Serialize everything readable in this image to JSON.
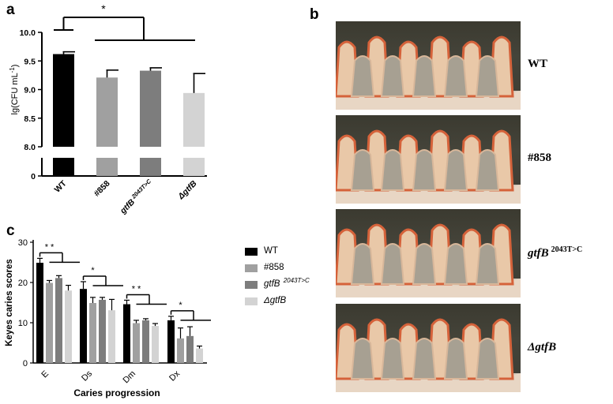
{
  "panels": {
    "a": "a",
    "b": "b",
    "c": "c"
  },
  "chart_data": [
    {
      "type": "bar",
      "panel": "a",
      "ylabel_main": "lg(CFU mL",
      "ylabel_sup": "-1",
      "ylabel_close": ")",
      "yticks": [
        "10.0",
        "9.5",
        "9.0",
        "8.5",
        "8.0",
        "0"
      ],
      "ylim": [
        8.0,
        10.0
      ],
      "axis_break": true,
      "categories": [
        {
          "main": "WT",
          "sup": ""
        },
        {
          "main": "#858",
          "sup": ""
        },
        {
          "main": "gtfB",
          "sup": " 2043T>C"
        },
        {
          "main": "ΔgtfB",
          "sup": ""
        }
      ],
      "values": [
        9.62,
        9.21,
        9.33,
        8.94
      ],
      "errors": [
        0.04,
        0.13,
        0.05,
        0.34
      ],
      "colors": [
        "#000000",
        "#a0a0a0",
        "#7d7d7d",
        "#d3d3d3"
      ],
      "significance": "*"
    },
    {
      "type": "bar",
      "panel": "c",
      "ylabel": "Keyes caries scores",
      "xlabel": "Caries progression",
      "yticks": [
        "0",
        "10",
        "20",
        "30"
      ],
      "ylim": [
        0,
        30
      ],
      "categories": [
        "E",
        "Ds",
        "Dm",
        "Dx"
      ],
      "series": [
        {
          "name": "WT",
          "values": [
            24.9,
            18.4,
            14.6,
            10.6
          ],
          "errors": [
            1.1,
            1.8,
            1.0,
            1.0
          ],
          "color": "#000000"
        },
        {
          "name": "#858",
          "values": [
            19.9,
            14.9,
            9.9,
            6.1
          ],
          "errors": [
            0.6,
            1.4,
            0.7,
            2.6
          ],
          "color": "#a0a0a0"
        },
        {
          "name": "gtfB",
          "name_sup": " 2043T>C",
          "values": [
            21.1,
            15.7,
            10.6,
            6.7
          ],
          "errors": [
            0.6,
            0.6,
            0.4,
            2.3
          ],
          "color": "#7d7d7d"
        },
        {
          "name": "ΔgtfB",
          "values": [
            18.0,
            13.1,
            9.2,
            3.6
          ],
          "errors": [
            1.3,
            2.7,
            0.6,
            0.6
          ],
          "color": "#d3d3d3"
        }
      ],
      "significance": [
        "* *",
        "*",
        "* *",
        "*"
      ]
    }
  ],
  "photos": [
    {
      "label": "WT",
      "sup": ""
    },
    {
      "label": "#858",
      "sup": ""
    },
    {
      "label": "gtfB",
      "sup": "2043T>C"
    },
    {
      "label": "ΔgtfB",
      "sup": ""
    }
  ],
  "photo_colors": {
    "tooth": "#e9c8a8",
    "stain": "#d5623a",
    "dentin": "#a7a092",
    "gum": "#efe3d4"
  }
}
